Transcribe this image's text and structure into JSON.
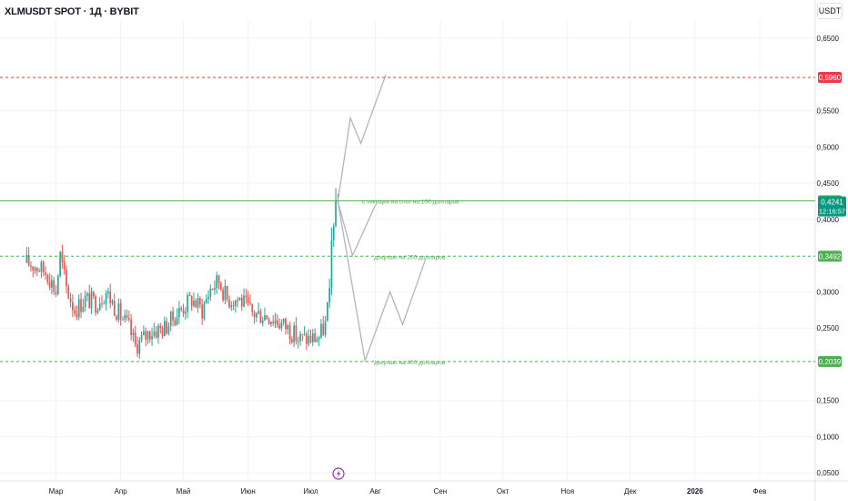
{
  "header": {
    "title": "XLMUSDT SPOT · 1Д · BYBIT",
    "currency": "USDT"
  },
  "colors": {
    "up": "#26a69a",
    "down": "#ef5350",
    "hline_green": "#4caf50",
    "hline_red": "#f23645",
    "projection": "#b2b5be",
    "event_icon": "#9c27b0"
  },
  "chart_data": {
    "type": "candlestick",
    "x_ticks": [
      "Мар",
      "Апр",
      "Май",
      "Июн",
      "Июл",
      "Авг",
      "Сен",
      "Окт",
      "Ноя",
      "Дек",
      "2026",
      "Фев"
    ],
    "y_ticks": [
      "0,6500",
      "0,5500",
      "0,5000",
      "0,4500",
      "0,4000",
      "0,3000",
      "0,2500",
      "0,1500",
      "0,1000",
      "0,0500"
    ],
    "ylim": [
      0.03,
      0.68
    ],
    "last_price": {
      "value": "0,4241",
      "countdown": "12:16:57"
    },
    "levels": [
      {
        "value": 0.596,
        "label": "0,5960",
        "color": "red",
        "style": "dashed",
        "text": ""
      },
      {
        "value": 0.4258,
        "label": "0,4258",
        "color": "green",
        "style": "solid",
        "text": "с текущих на спот на 100 долларов"
      },
      {
        "value": 0.3492,
        "label": "0,3492",
        "color": "green",
        "style": "dashed",
        "text": "докупаю на 200 долларов"
      },
      {
        "value": 0.2039,
        "label": "0,2039",
        "color": "green",
        "style": "dashed",
        "text": "докупаю на 400 долларов"
      }
    ],
    "candles_close_path": [
      [
        "2025-02-15",
        0.34
      ],
      [
        "2025-02-20",
        0.335
      ],
      [
        "2025-02-25",
        0.325
      ],
      [
        "2025-03-01",
        0.3
      ],
      [
        "2025-03-03",
        0.35
      ],
      [
        "2025-03-06",
        0.305
      ],
      [
        "2025-03-10",
        0.275
      ],
      [
        "2025-03-15",
        0.29
      ],
      [
        "2025-03-20",
        0.285
      ],
      [
        "2025-03-25",
        0.3
      ],
      [
        "2025-03-30",
        0.275
      ],
      [
        "2025-04-05",
        0.25
      ],
      [
        "2025-04-08",
        0.225
      ],
      [
        "2025-04-15",
        0.245
      ],
      [
        "2025-04-22",
        0.25
      ],
      [
        "2025-04-28",
        0.27
      ],
      [
        "2025-05-05",
        0.29
      ],
      [
        "2025-05-10",
        0.275
      ],
      [
        "2025-05-14",
        0.305
      ],
      [
        "2025-05-18",
        0.315
      ],
      [
        "2025-05-22",
        0.29
      ],
      [
        "2025-05-28",
        0.29
      ],
      [
        "2025-06-03",
        0.27
      ],
      [
        "2025-06-10",
        0.268
      ],
      [
        "2025-06-15",
        0.26
      ],
      [
        "2025-06-20",
        0.25
      ],
      [
        "2025-06-25",
        0.235
      ],
      [
        "2025-07-01",
        0.235
      ],
      [
        "2025-07-05",
        0.238
      ],
      [
        "2025-07-08",
        0.255
      ],
      [
        "2025-07-10",
        0.3
      ],
      [
        "2025-07-11",
        0.37
      ],
      [
        "2025-07-12",
        0.395
      ],
      [
        "2025-07-13",
        0.42
      ],
      [
        "2025-07-14",
        0.424
      ]
    ],
    "projection_paths": [
      [
        [
          "2025-07-14",
          0.425
        ],
        [
          "2025-07-20",
          0.54
        ],
        [
          "2025-07-25",
          0.505
        ],
        [
          "2025-08-06",
          0.6
        ]
      ],
      [
        [
          "2025-07-14",
          0.425
        ],
        [
          "2025-07-21",
          0.35
        ],
        [
          "2025-08-01",
          0.42
        ]
      ],
      [
        [
          "2025-07-14",
          0.425
        ],
        [
          "2025-07-27",
          0.205
        ],
        [
          "2025-08-08",
          0.3
        ],
        [
          "2025-08-14",
          0.255
        ],
        [
          "2025-08-25",
          0.345
        ]
      ]
    ]
  }
}
